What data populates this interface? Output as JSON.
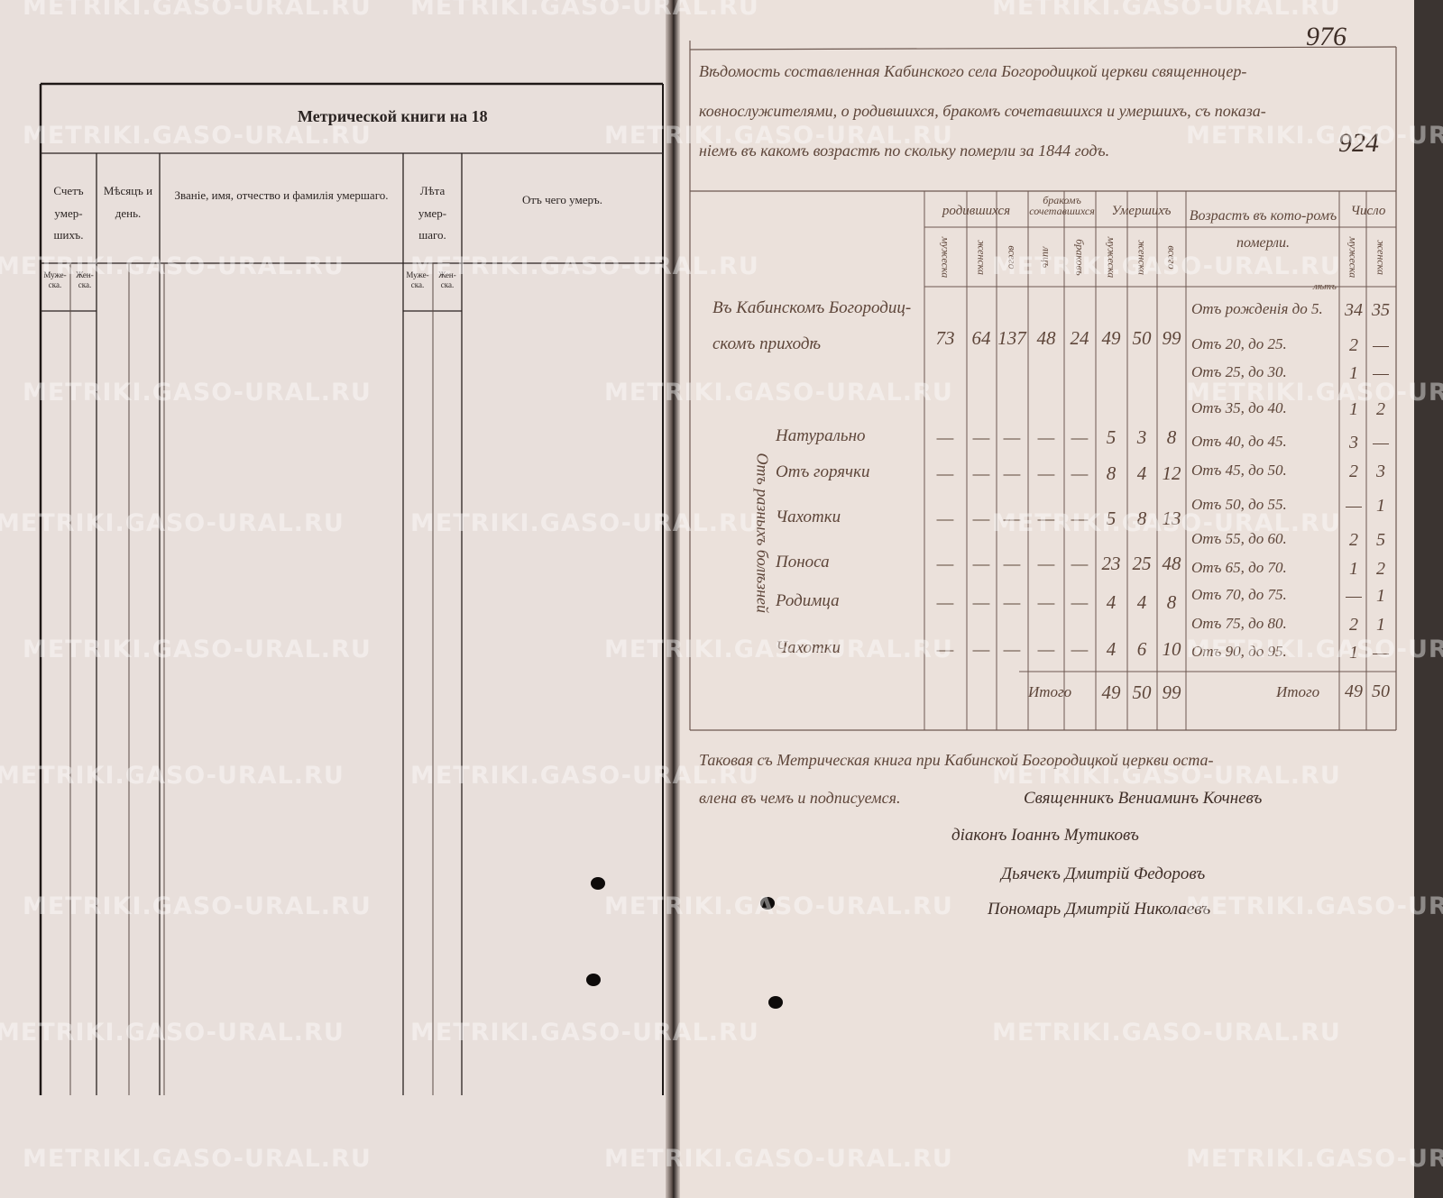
{
  "watermark": "METRIKI.GASO-URAL.RU",
  "left_page": {
    "title": "Метрической книги на 18",
    "columns": [
      "Счетъ умер-шихъ.",
      "Мѣсяцъ и день.",
      "Званіе, имя, отчество и фамилія умершаго.",
      "Лѣта умер-шаго.",
      "Отъ чего умеръ."
    ],
    "subcolumns": [
      "Муже-ска.",
      "Жен-ска."
    ]
  },
  "right_page": {
    "page_number": "976",
    "page_number_old": "924",
    "heading": [
      "Вѣдомость составленная Кабинского села Богородицкой церкви священноцер-",
      "ковнослужителями, о родившихся, бракомъ сочетавшихся и умершихъ, съ показа-",
      "ніемъ въ какомъ возрастѣ по скольку померли за 1844 годъ."
    ],
    "headers": {
      "born": "родившихся",
      "married": "бракомъ сочетавшихся",
      "died": "Умершихъ",
      "age": "Возрастъ въ кото-ромъ померли.",
      "count": "Число",
      "male": "мужеска",
      "female": "женска",
      "total": "всего",
      "persons": "лицъ",
      "marriages": "браковъ"
    },
    "parish": {
      "label": [
        "Въ Кабинскомъ Богородиц-",
        "скомъ приходѣ"
      ],
      "values": [
        73,
        64,
        137,
        48,
        24,
        49,
        50,
        99
      ]
    },
    "cause_group": "Отъ разныхъ болѣзней",
    "causes": [
      {
        "label": "Натурально",
        "values": [
          "—",
          "—",
          "—",
          "—",
          "—",
          5,
          3,
          8
        ]
      },
      {
        "label": "Отъ горячки",
        "values": [
          "—",
          "—",
          "—",
          "—",
          "—",
          8,
          4,
          12
        ]
      },
      {
        "label": "Чахотки",
        "values": [
          "—",
          "—",
          "—",
          "—",
          "—",
          5,
          8,
          13
        ]
      },
      {
        "label": "Поноса",
        "values": [
          "—",
          "—",
          "—",
          "—",
          "—",
          23,
          25,
          48
        ]
      },
      {
        "label": "Родимца",
        "values": [
          "—",
          "—",
          "—",
          "—",
          "—",
          4,
          4,
          8
        ]
      },
      {
        "label": "Чахотки",
        "values": [
          "—",
          "—",
          "—",
          "—",
          "—",
          4,
          6,
          10
        ]
      }
    ],
    "age_unit": "лѣтъ",
    "ages": [
      {
        "label": "Отъ рожденія до 5.",
        "values": [
          34,
          35
        ]
      },
      {
        "label": "Отъ 20, до 25.",
        "values": [
          2,
          "—"
        ]
      },
      {
        "label": "Отъ 25, до 30.",
        "values": [
          1,
          "—"
        ]
      },
      {
        "label": "Отъ 35, до 40.",
        "values": [
          1,
          2
        ]
      },
      {
        "label": "Отъ 40, до 45.",
        "values": [
          3,
          "—"
        ]
      },
      {
        "label": "Отъ 45, до 50.",
        "values": [
          2,
          3
        ]
      },
      {
        "label": "Отъ 50, до 55.",
        "values": [
          "—",
          1
        ]
      },
      {
        "label": "Отъ 55, до 60.",
        "values": [
          2,
          5
        ]
      },
      {
        "label": "Отъ 65, до 70.",
        "values": [
          1,
          2
        ]
      },
      {
        "label": "Отъ 70, до 75.",
        "values": [
          "—",
          1
        ]
      },
      {
        "label": "Отъ 75, до 80.",
        "values": [
          2,
          1
        ]
      },
      {
        "label": "Отъ 90, до 95.",
        "values": [
          1,
          "—"
        ]
      }
    ],
    "total_label": "Итого",
    "totals": [
      49,
      50,
      99
    ],
    "age_totals": [
      49,
      50
    ],
    "footer": [
      "Таковая съ Метрическая книга при Кабинской Богородицкой церкви оста-",
      "влена въ чемъ и подписуемся."
    ],
    "signatures": [
      "Священникъ Вениаминъ Кочневъ",
      "діаконъ Іоаннъ Мутиковъ",
      "Дьячекъ Дмитрій Федоровъ",
      "Пономарь Дмитрій Николаевъ"
    ]
  }
}
